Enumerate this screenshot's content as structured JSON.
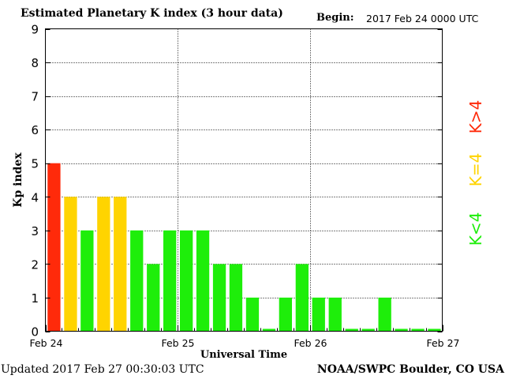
{
  "header": {
    "title": "Estimated Planetary K index (3 hour data)",
    "begin_label": "Begin:",
    "begin_value": "2017 Feb 24 0000 UTC"
  },
  "footer": {
    "updated": "Updated 2017 Feb 27 00:30:03 UTC",
    "source": "NOAA/SWPC Boulder, CO USA"
  },
  "legend": {
    "high": {
      "label": "K>4",
      "color": "#ff2a0a"
    },
    "mid": {
      "label": "K=4",
      "color": "#ffd400"
    },
    "low": {
      "label": "K<4",
      "color": "#1eee0a"
    }
  },
  "chart_data": {
    "type": "bar",
    "title": "Estimated Planetary K index (3 hour data)",
    "xlabel": "Universal Time",
    "ylabel": "Kp index",
    "ylim": [
      0,
      9
    ],
    "yticks": [
      "0",
      "1",
      "2",
      "3",
      "4",
      "5",
      "6",
      "7",
      "8",
      "9"
    ],
    "xticks": [
      "Feb 24",
      "Feb 25",
      "Feb 26",
      "Feb 27"
    ],
    "grid": true,
    "bars_per_day": 8,
    "values": [
      5,
      4,
      3,
      4,
      4,
      3,
      2,
      3,
      3,
      3,
      2,
      2,
      1,
      0.07,
      1,
      2,
      1,
      1,
      0.07,
      0.07,
      1,
      0.07,
      0.07,
      0.07
    ],
    "colors": {
      "gt4": "#ff2a0a",
      "eq4": "#ffd400",
      "lt4": "#1eee0a"
    }
  }
}
